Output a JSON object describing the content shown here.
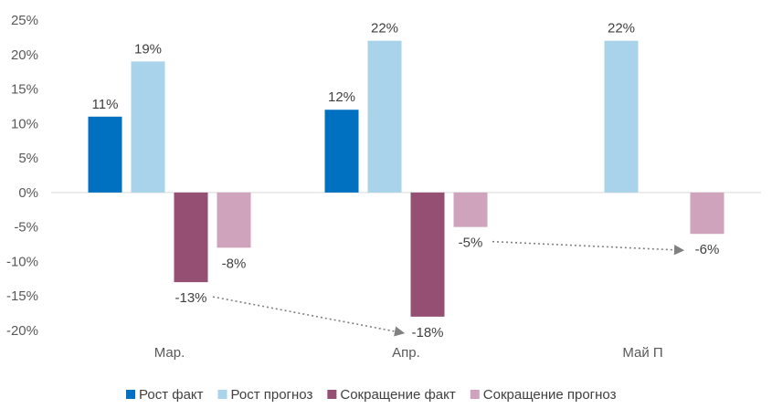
{
  "chart_data": {
    "type": "bar",
    "categories": [
      "Мар.",
      "Апр.",
      "Май П"
    ],
    "series": [
      {
        "name": "Рост факт",
        "color": "#0070C0",
        "values": [
          11,
          12,
          null
        ],
        "labels": [
          "11%",
          "12%",
          ""
        ]
      },
      {
        "name": "Рост прогноз",
        "color": "#A9D3EA",
        "values": [
          19,
          22,
          22
        ],
        "labels": [
          "19%",
          "22%",
          "22%"
        ]
      },
      {
        "name": "Сокращение факт",
        "color": "#954F72",
        "values": [
          -13,
          -18,
          null
        ],
        "labels": [
          "-13%",
          "-18%",
          ""
        ]
      },
      {
        "name": "Сокращение прогноз",
        "color": "#D0A3BD",
        "values": [
          -8,
          -5,
          -6
        ],
        "labels": [
          "-8%",
          "-5%",
          "-6%"
        ]
      }
    ],
    "ylim": [
      -20,
      25
    ],
    "yticks": [
      25,
      20,
      15,
      10,
      5,
      0,
      -5,
      -10,
      -15,
      -20
    ],
    "ytick_labels": [
      "25%",
      "20%",
      "15%",
      "10%",
      "5%",
      "0%",
      "-5%",
      "-10%",
      "-15%",
      "-20%"
    ],
    "grid": false,
    "legend_position": "bottom",
    "annotations": [
      {
        "type": "dotted-arrow",
        "from": "Сокращение факт Мар. label",
        "to": "Сокращение факт Апр. label"
      },
      {
        "type": "dotted-arrow",
        "from": "Сокращение прогноз Апр. label",
        "to": "Сокращение прогноз Май П label"
      }
    ],
    "colors": {
      "axis": "#D9D9D9",
      "arrow": "#808080",
      "text": "#595959"
    }
  }
}
